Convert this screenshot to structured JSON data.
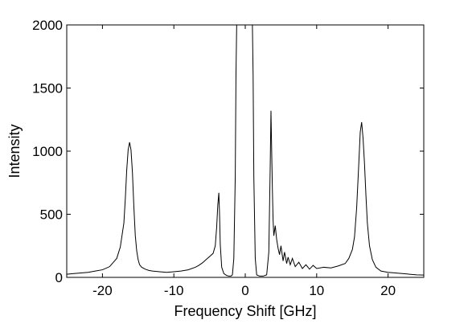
{
  "chart_data": {
    "type": "line",
    "title": "",
    "xlabel": "Frequency Shift [GHz]",
    "ylabel": "Intensity",
    "xlim": [
      -25,
      25
    ],
    "ylim": [
      0,
      2000
    ],
    "xticks": [
      -20,
      -10,
      0,
      10,
      20
    ],
    "yticks": [
      0,
      500,
      1000,
      1500,
      2000
    ],
    "grid": false,
    "box": true,
    "line_color": "#000000",
    "series": [
      {
        "x": [
          -25,
          -24,
          -23,
          -22,
          -21,
          -20,
          -19,
          -18,
          -17.5,
          -17,
          -16.8,
          -16.6,
          -16.4,
          -16.2,
          -16.0,
          -15.8,
          -15.6,
          -15.4,
          -15.2,
          -15.0,
          -14.8,
          -14.5,
          -14.0,
          -13.5,
          -13.0,
          -12.0,
          -11.0,
          -10.0,
          -9.0,
          -8.0,
          -7.0,
          -6.5,
          -6.0,
          -5.5,
          -5.0,
          -4.5,
          -4.2,
          -4.0,
          -3.85,
          -3.7,
          -3.6,
          -3.5,
          -3.3,
          -3.0,
          -2.6,
          -2.3,
          -2.0,
          -1.8,
          -1.6,
          -1.4,
          -1.3,
          -1.2,
          1.0,
          1.1,
          1.2,
          1.4,
          1.6,
          2.0,
          2.5,
          3.0,
          3.3,
          3.5,
          3.6,
          3.7,
          3.8,
          3.9,
          4.0,
          4.1,
          4.2,
          4.4,
          4.6,
          4.8,
          5.0,
          5.3,
          5.5,
          5.8,
          6.0,
          6.3,
          6.6,
          7.0,
          7.5,
          8.0,
          8.5,
          9.0,
          9.5,
          10.0,
          11.0,
          12.0,
          13.0,
          14.0,
          14.5,
          15.0,
          15.3,
          15.6,
          15.9,
          16.1,
          16.3,
          16.5,
          16.7,
          16.9,
          17.1,
          17.4,
          17.8,
          18.3,
          19.0,
          20.0,
          21.0,
          22.0,
          23.0,
          24.0,
          25.0
        ],
        "y": [
          25,
          30,
          35,
          40,
          50,
          60,
          85,
          150,
          240,
          430,
          620,
          850,
          1010,
          1070,
          1010,
          830,
          560,
          330,
          210,
          140,
          100,
          80,
          65,
          55,
          50,
          45,
          40,
          45,
          50,
          60,
          80,
          95,
          115,
          140,
          165,
          190,
          250,
          400,
          570,
          670,
          500,
          260,
          80,
          30,
          15,
          10,
          10,
          20,
          150,
          800,
          1600,
          2000,
          2000,
          1600,
          800,
          150,
          20,
          10,
          10,
          20,
          200,
          900,
          1320,
          1000,
          700,
          450,
          330,
          370,
          410,
          300,
          230,
          180,
          250,
          130,
          200,
          110,
          160,
          100,
          150,
          85,
          120,
          70,
          100,
          65,
          95,
          70,
          80,
          75,
          90,
          110,
          150,
          220,
          320,
          550,
          900,
          1150,
          1230,
          1100,
          900,
          650,
          430,
          250,
          140,
          80,
          50,
          40,
          35,
          30,
          25,
          20,
          18
        ]
      }
    ]
  }
}
